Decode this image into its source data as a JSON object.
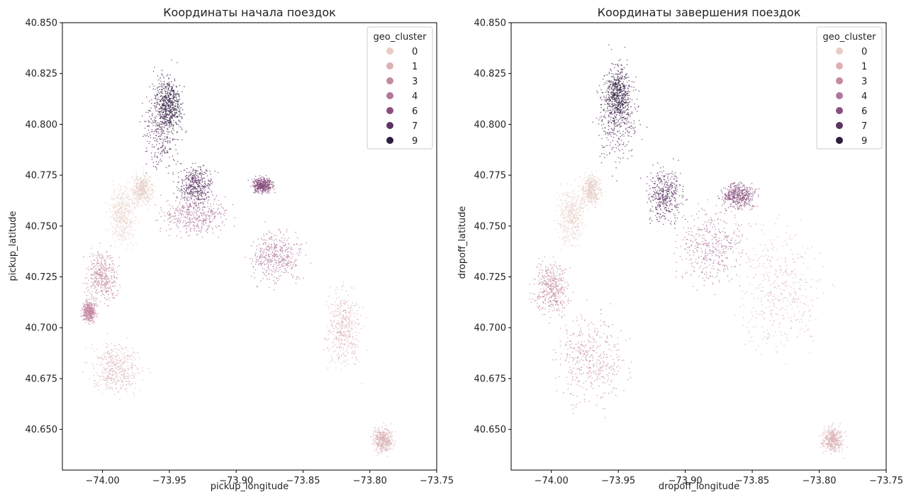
{
  "palette": {
    "0": "#e6cdc6",
    "1": "#dbb1b6",
    "3": "#c48aa1",
    "4": "#b07899",
    "6": "#8a4f7d",
    "7": "#5c3563",
    "9": "#2d1e3e"
  },
  "chart_data": [
    {
      "type": "scatter",
      "title": "Координаты начала поездок",
      "xlabel": "pickup_longitude",
      "ylabel": "pickup_latitude",
      "xlim": [
        -74.03,
        -73.75
      ],
      "ylim": [
        40.63,
        40.85
      ],
      "xticks": [
        "−74.00",
        "−73.95",
        "−73.90",
        "−73.85",
        "−73.80",
        "−73.75"
      ],
      "xtick_values": [
        -74.0,
        -73.95,
        -73.9,
        -73.85,
        -73.8,
        -73.75
      ],
      "yticks": [
        "40.650",
        "40.675",
        "40.700",
        "40.725",
        "40.750",
        "40.775",
        "40.800",
        "40.825",
        "40.850"
      ],
      "ytick_values": [
        40.65,
        40.675,
        40.7,
        40.725,
        40.75,
        40.775,
        40.8,
        40.825,
        40.85
      ],
      "legend": {
        "title": "geo_cluster",
        "placement": "top-right",
        "entries": [
          "0",
          "1",
          "3",
          "4",
          "6",
          "7",
          "9"
        ]
      },
      "series": [
        {
          "name": "0",
          "regions": [
            [
              -73.985,
              40.755,
              0.016,
              0.022
            ],
            [
              -73.97,
              40.768,
              0.012,
              0.012
            ]
          ]
        },
        {
          "name": "1",
          "regions": [
            [
              -73.99,
              40.68,
              0.03,
              0.02
            ],
            [
              -73.82,
              40.7,
              0.02,
              0.03
            ],
            [
              -73.79,
              40.645,
              0.012,
              0.01
            ]
          ]
        },
        {
          "name": "3",
          "regions": [
            [
              -74.0,
              40.725,
              0.018,
              0.02
            ],
            [
              -74.01,
              40.708,
              0.008,
              0.008
            ]
          ]
        },
        {
          "name": "4",
          "regions": [
            [
              -73.93,
              40.755,
              0.04,
              0.015
            ],
            [
              -73.87,
              40.735,
              0.03,
              0.02
            ]
          ]
        },
        {
          "name": "6",
          "regions": [
            [
              -73.88,
              40.77,
              0.012,
              0.006
            ]
          ]
        },
        {
          "name": "7",
          "regions": [
            [
              -73.955,
              40.8,
              0.022,
              0.035
            ],
            [
              -73.93,
              40.77,
              0.02,
              0.015
            ]
          ]
        },
        {
          "name": "9",
          "regions": [
            [
              -73.95,
              40.81,
              0.015,
              0.02
            ]
          ]
        }
      ]
    },
    {
      "type": "scatter",
      "title": "Координаты завершения поездок",
      "xlabel": "dropoff_longitude",
      "ylabel": "dropoff_latitude",
      "xlim": [
        -74.03,
        -73.75
      ],
      "ylim": [
        40.63,
        40.85
      ],
      "xticks": [
        "−74.00",
        "−73.95",
        "−73.90",
        "−73.85",
        "−73.80",
        "−73.75"
      ],
      "xtick_values": [
        -74.0,
        -73.95,
        -73.9,
        -73.85,
        -73.8,
        -73.75
      ],
      "yticks": [
        "40.650",
        "40.675",
        "40.700",
        "40.725",
        "40.750",
        "40.775",
        "40.800",
        "40.825",
        "40.850"
      ],
      "ytick_values": [
        40.65,
        40.675,
        40.7,
        40.725,
        40.75,
        40.775,
        40.8,
        40.825,
        40.85
      ],
      "legend": {
        "title": "geo_cluster",
        "placement": "top-right",
        "entries": [
          "0",
          "1",
          "3",
          "4",
          "6",
          "7",
          "9"
        ]
      },
      "series": [
        {
          "name": "0",
          "regions": [
            [
              -73.985,
              40.755,
              0.016,
              0.022
            ],
            [
              -73.97,
              40.768,
              0.012,
              0.012
            ]
          ]
        },
        {
          "name": "1",
          "regions": [
            [
              -73.83,
              40.72,
              0.05,
              0.05
            ],
            [
              -73.79,
              40.645,
              0.012,
              0.01
            ]
          ]
        },
        {
          "name": "3",
          "regions": [
            [
              -73.97,
              40.685,
              0.04,
              0.035
            ],
            [
              -74.0,
              40.72,
              0.02,
              0.02
            ]
          ]
        },
        {
          "name": "4",
          "regions": [
            [
              -73.88,
              40.74,
              0.04,
              0.03
            ]
          ]
        },
        {
          "name": "6",
          "regions": [
            [
              -73.86,
              40.765,
              0.02,
              0.01
            ]
          ]
        },
        {
          "name": "7",
          "regions": [
            [
              -73.95,
              40.805,
              0.025,
              0.04
            ],
            [
              -73.915,
              40.765,
              0.02,
              0.02
            ]
          ]
        },
        {
          "name": "9",
          "regions": [
            [
              -73.95,
              40.815,
              0.015,
              0.02
            ]
          ]
        }
      ]
    }
  ]
}
